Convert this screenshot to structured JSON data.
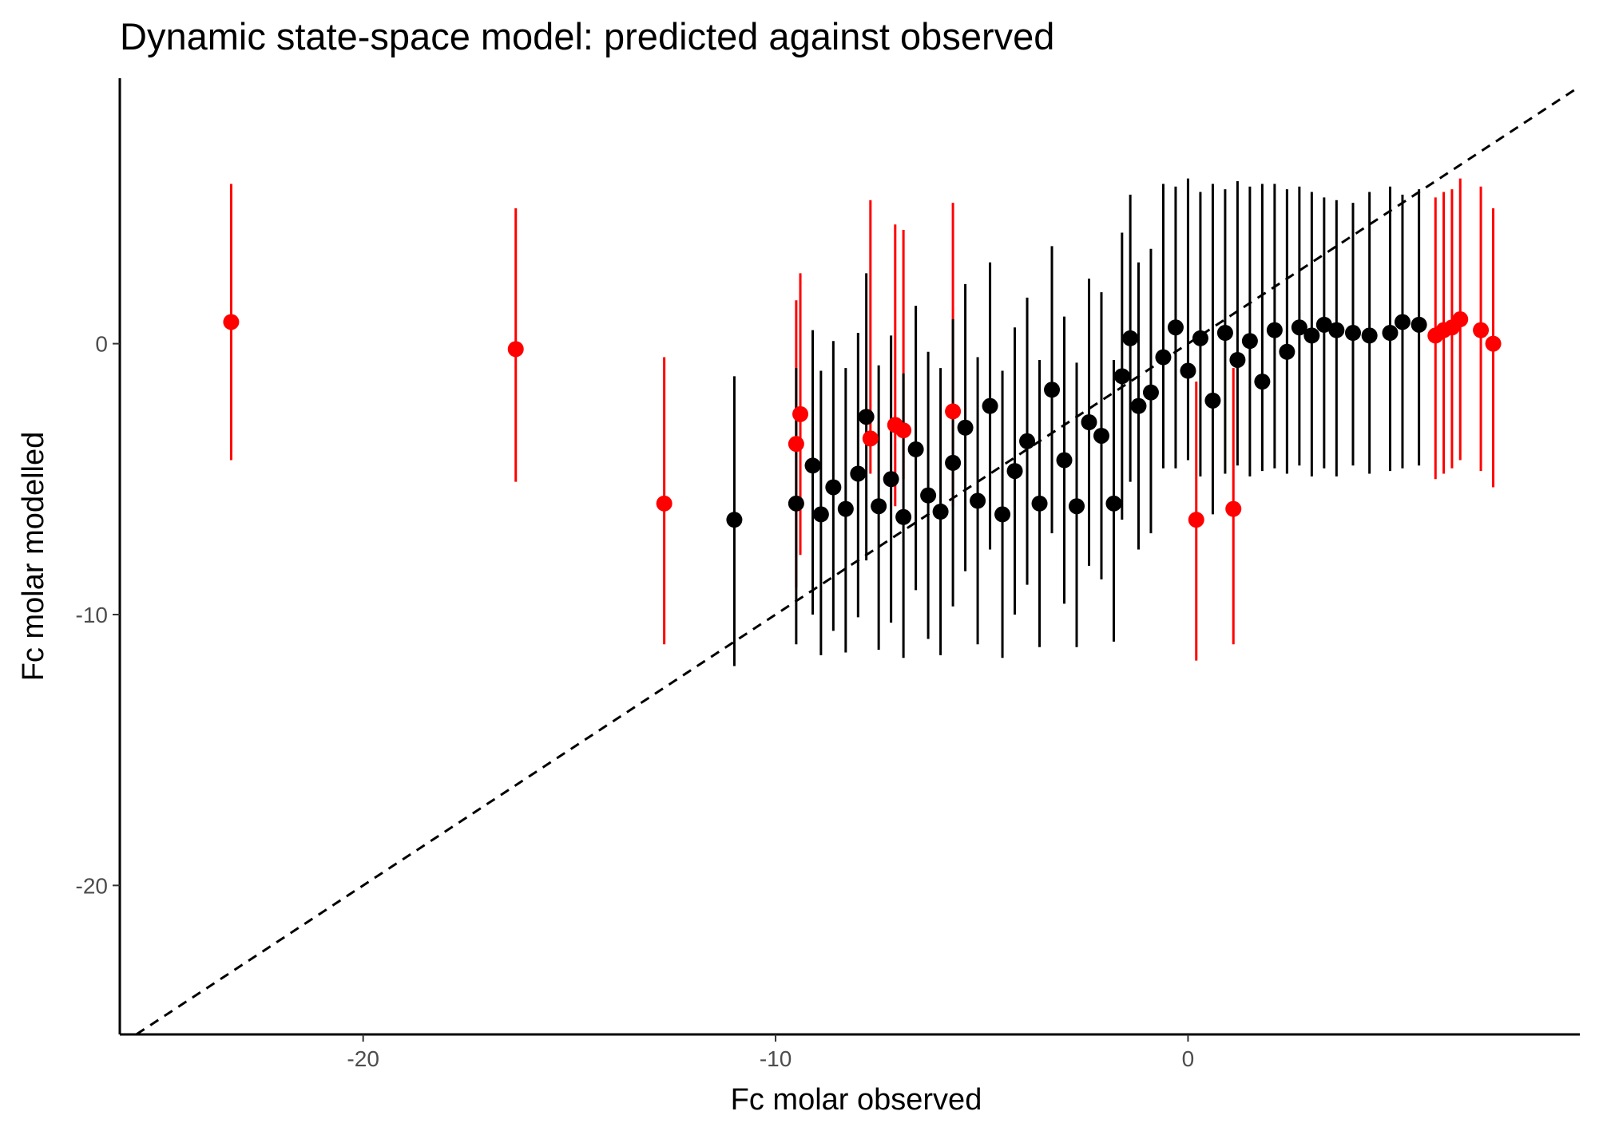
{
  "chart_data": {
    "type": "scatter",
    "title": "Dynamic state-space model: predicted against observed",
    "xlabel": "Fc molar observed",
    "ylabel": "Fc molar modelled",
    "xlim": [
      -25.9,
      9.5
    ],
    "ylim": [
      -25.5,
      9.8
    ],
    "x_ticks": [
      -20,
      -10,
      0
    ],
    "y_ticks": [
      -20,
      -10,
      0
    ],
    "x_tick_labels": [
      "-20",
      "-10",
      "0"
    ],
    "y_tick_labels": [
      "-20",
      "-10",
      "0"
    ],
    "grid": false,
    "legend": "none",
    "reference_line": {
      "type": "identity",
      "slope": 1,
      "intercept": 0,
      "style": "dashed",
      "color": "#000000"
    },
    "series": [
      {
        "color": "#ff0000",
        "points": [
          {
            "x": -23.2,
            "y": 0.8,
            "lower": -4.3,
            "upper": 5.9
          },
          {
            "x": -16.3,
            "y": -0.2,
            "lower": -5.1,
            "upper": 5.0
          },
          {
            "x": -12.7,
            "y": -5.9,
            "lower": -11.1,
            "upper": -0.5
          },
          {
            "x": -9.5,
            "y": -3.7,
            "lower": -9.0,
            "upper": 1.6
          },
          {
            "x": -9.4,
            "y": -2.6,
            "lower": -7.8,
            "upper": 2.6
          },
          {
            "x": -7.7,
            "y": -3.5,
            "lower": -4.8,
            "upper": 5.3
          },
          {
            "x": -7.1,
            "y": -3.0,
            "lower": -6.0,
            "upper": 4.4
          },
          {
            "x": -6.9,
            "y": -3.2,
            "lower": -5.0,
            "upper": 4.2
          },
          {
            "x": -5.7,
            "y": -2.5,
            "lower": -6.0,
            "upper": 5.2
          },
          {
            "x": 0.2,
            "y": -6.5,
            "lower": -11.7,
            "upper": -1.4
          },
          {
            "x": 1.1,
            "y": -6.1,
            "lower": -11.1,
            "upper": -0.9
          },
          {
            "x": 6.0,
            "y": 0.3,
            "lower": -5.0,
            "upper": 5.4
          },
          {
            "x": 6.2,
            "y": 0.5,
            "lower": -4.8,
            "upper": 5.6
          },
          {
            "x": 6.4,
            "y": 0.6,
            "lower": -4.6,
            "upper": 5.7
          },
          {
            "x": 6.6,
            "y": 0.9,
            "lower": -4.3,
            "upper": 6.1
          },
          {
            "x": 7.1,
            "y": 0.5,
            "lower": -4.7,
            "upper": 5.8
          },
          {
            "x": 7.4,
            "y": 0.0,
            "lower": -5.3,
            "upper": 5.0
          }
        ]
      },
      {
        "color": "#000000",
        "points": [
          {
            "x": -11.0,
            "y": -6.5,
            "lower": -11.9,
            "upper": -1.2
          },
          {
            "x": -9.5,
            "y": -5.9,
            "lower": -11.1,
            "upper": -0.9
          },
          {
            "x": -9.1,
            "y": -4.5,
            "lower": -10.0,
            "upper": 0.5
          },
          {
            "x": -8.9,
            "y": -6.3,
            "lower": -11.5,
            "upper": -1.0
          },
          {
            "x": -8.6,
            "y": -5.3,
            "lower": -10.6,
            "upper": 0.1
          },
          {
            "x": -8.3,
            "y": -6.1,
            "lower": -11.4,
            "upper": -0.9
          },
          {
            "x": -8.0,
            "y": -4.8,
            "lower": -10.1,
            "upper": 0.4
          },
          {
            "x": -7.8,
            "y": -2.7,
            "lower": -8.0,
            "upper": 2.6
          },
          {
            "x": -7.5,
            "y": -6.0,
            "lower": -11.3,
            "upper": -0.8
          },
          {
            "x": -7.2,
            "y": -5.0,
            "lower": -10.3,
            "upper": 0.3
          },
          {
            "x": -6.9,
            "y": -6.4,
            "lower": -11.6,
            "upper": -1.1
          },
          {
            "x": -6.6,
            "y": -3.9,
            "lower": -9.1,
            "upper": 1.4
          },
          {
            "x": -6.3,
            "y": -5.6,
            "lower": -10.9,
            "upper": -0.3
          },
          {
            "x": -6.0,
            "y": -6.2,
            "lower": -11.5,
            "upper": -0.9
          },
          {
            "x": -5.7,
            "y": -4.4,
            "lower": -9.7,
            "upper": 0.9
          },
          {
            "x": -5.4,
            "y": -3.1,
            "lower": -8.4,
            "upper": 2.2
          },
          {
            "x": -5.1,
            "y": -5.8,
            "lower": -11.1,
            "upper": -0.5
          },
          {
            "x": -4.8,
            "y": -2.3,
            "lower": -7.6,
            "upper": 3.0
          },
          {
            "x": -4.5,
            "y": -6.3,
            "lower": -11.6,
            "upper": -1.0
          },
          {
            "x": -4.2,
            "y": -4.7,
            "lower": -10.0,
            "upper": 0.6
          },
          {
            "x": -3.9,
            "y": -3.6,
            "lower": -8.9,
            "upper": 1.7
          },
          {
            "x": -3.6,
            "y": -5.9,
            "lower": -11.2,
            "upper": -0.6
          },
          {
            "x": -3.3,
            "y": -1.7,
            "lower": -7.0,
            "upper": 3.6
          },
          {
            "x": -3.0,
            "y": -4.3,
            "lower": -9.6,
            "upper": 1.0
          },
          {
            "x": -2.7,
            "y": -6.0,
            "lower": -11.2,
            "upper": -0.7
          },
          {
            "x": -2.4,
            "y": -2.9,
            "lower": -8.2,
            "upper": 2.4
          },
          {
            "x": -2.1,
            "y": -3.4,
            "lower": -8.7,
            "upper": 1.9
          },
          {
            "x": -1.8,
            "y": -5.9,
            "lower": -11.0,
            "upper": -0.6
          },
          {
            "x": -1.6,
            "y": -1.2,
            "lower": -6.5,
            "upper": 4.1
          },
          {
            "x": -1.4,
            "y": 0.2,
            "lower": -5.1,
            "upper": 5.5
          },
          {
            "x": -1.2,
            "y": -2.3,
            "lower": -7.6,
            "upper": 3.0
          },
          {
            "x": -0.9,
            "y": -1.8,
            "lower": -7.0,
            "upper": 3.5
          },
          {
            "x": -0.6,
            "y": -0.5,
            "lower": -4.6,
            "upper": 5.9
          },
          {
            "x": -0.3,
            "y": 0.6,
            "lower": -4.6,
            "upper": 5.8
          },
          {
            "x": 0.0,
            "y": -1.0,
            "lower": -4.3,
            "upper": 6.1
          },
          {
            "x": 0.3,
            "y": 0.2,
            "lower": -4.9,
            "upper": 5.6
          },
          {
            "x": 0.6,
            "y": -2.1,
            "lower": -6.3,
            "upper": 5.9
          },
          {
            "x": 0.9,
            "y": 0.4,
            "lower": -4.8,
            "upper": 5.7
          },
          {
            "x": 1.2,
            "y": -0.6,
            "lower": -4.5,
            "upper": 6.0
          },
          {
            "x": 1.5,
            "y": 0.1,
            "lower": -4.9,
            "upper": 5.8
          },
          {
            "x": 1.8,
            "y": -1.4,
            "lower": -4.7,
            "upper": 5.9
          },
          {
            "x": 2.1,
            "y": 0.5,
            "lower": -4.6,
            "upper": 5.9
          },
          {
            "x": 2.4,
            "y": -0.3,
            "lower": -4.8,
            "upper": 5.7
          },
          {
            "x": 2.7,
            "y": 0.6,
            "lower": -4.5,
            "upper": 5.8
          },
          {
            "x": 3.0,
            "y": 0.3,
            "lower": -4.9,
            "upper": 5.6
          },
          {
            "x": 3.3,
            "y": 0.7,
            "lower": -4.6,
            "upper": 5.4
          },
          {
            "x": 3.6,
            "y": 0.5,
            "lower": -4.9,
            "upper": 5.3
          },
          {
            "x": 4.0,
            "y": 0.4,
            "lower": -4.5,
            "upper": 5.2
          },
          {
            "x": 4.4,
            "y": 0.3,
            "lower": -4.8,
            "upper": 5.6
          },
          {
            "x": 4.9,
            "y": 0.4,
            "lower": -4.7,
            "upper": 5.8
          },
          {
            "x": 5.2,
            "y": 0.8,
            "lower": -4.6,
            "upper": 5.5
          },
          {
            "x": 5.6,
            "y": 0.7,
            "lower": -4.5,
            "upper": 5.7
          }
        ]
      }
    ]
  }
}
